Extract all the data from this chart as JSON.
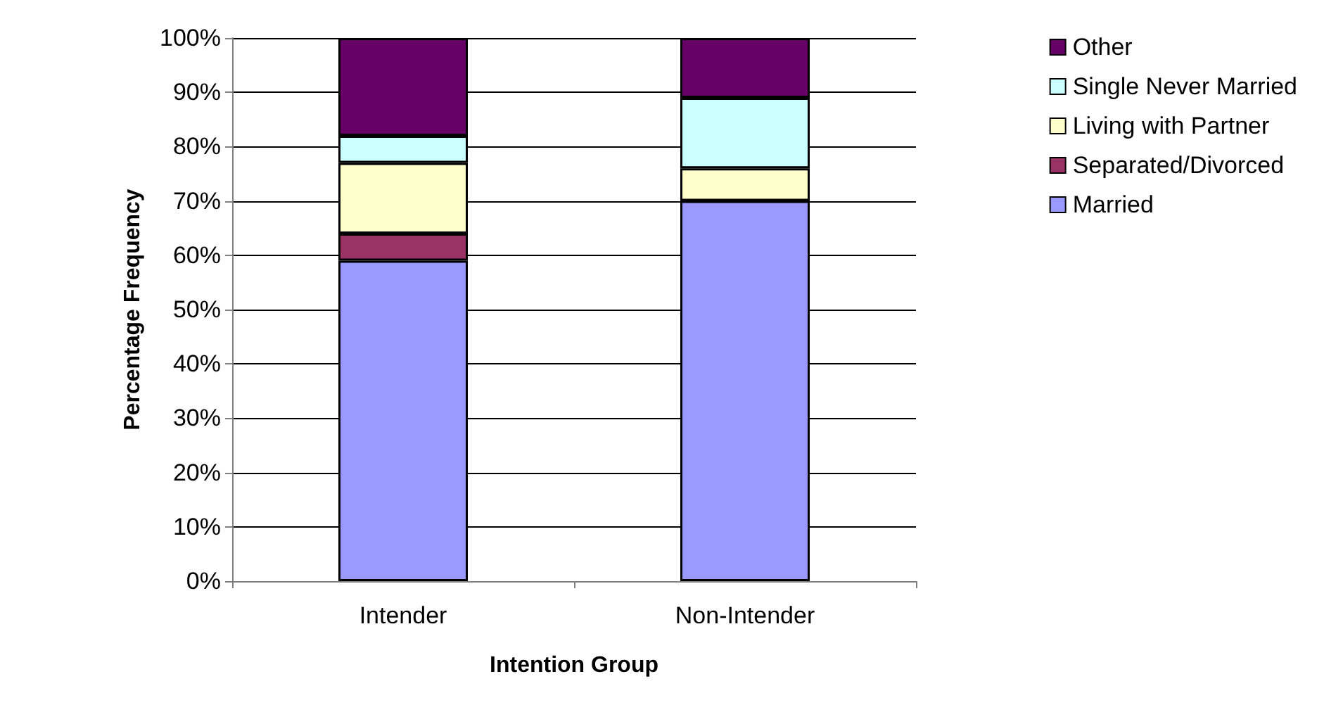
{
  "chart_data": {
    "type": "bar",
    "stacked": true,
    "xlabel": "Intention Group",
    "ylabel": "Percentage Frequency",
    "categories": [
      "Intender",
      "Non-Intender"
    ],
    "series": [
      {
        "name": "Married",
        "color": "#9999ff",
        "values": [
          59,
          70
        ]
      },
      {
        "name": "Separated/Divorced",
        "color": "#993366",
        "values": [
          5,
          0
        ]
      },
      {
        "name": "Living with Partner",
        "color": "#ffffcc",
        "values": [
          13,
          6
        ]
      },
      {
        "name": "Single Never Married",
        "color": "#ccffff",
        "values": [
          5,
          13
        ]
      },
      {
        "name": "Other",
        "color": "#660066",
        "values": [
          18,
          11
        ]
      }
    ],
    "ylim": [
      0,
      100
    ],
    "yticks": [
      {
        "value": 0,
        "label": "0%"
      },
      {
        "value": 10,
        "label": "10%"
      },
      {
        "value": 20,
        "label": "20%"
      },
      {
        "value": 30,
        "label": "30%"
      },
      {
        "value": 40,
        "label": "40%"
      },
      {
        "value": 50,
        "label": "50%"
      },
      {
        "value": 60,
        "label": "60%"
      },
      {
        "value": 70,
        "label": "70%"
      },
      {
        "value": 80,
        "label": "80%"
      },
      {
        "value": 90,
        "label": "90%"
      },
      {
        "value": 100,
        "label": "100%"
      }
    ],
    "grid": "y",
    "legend": "right"
  }
}
